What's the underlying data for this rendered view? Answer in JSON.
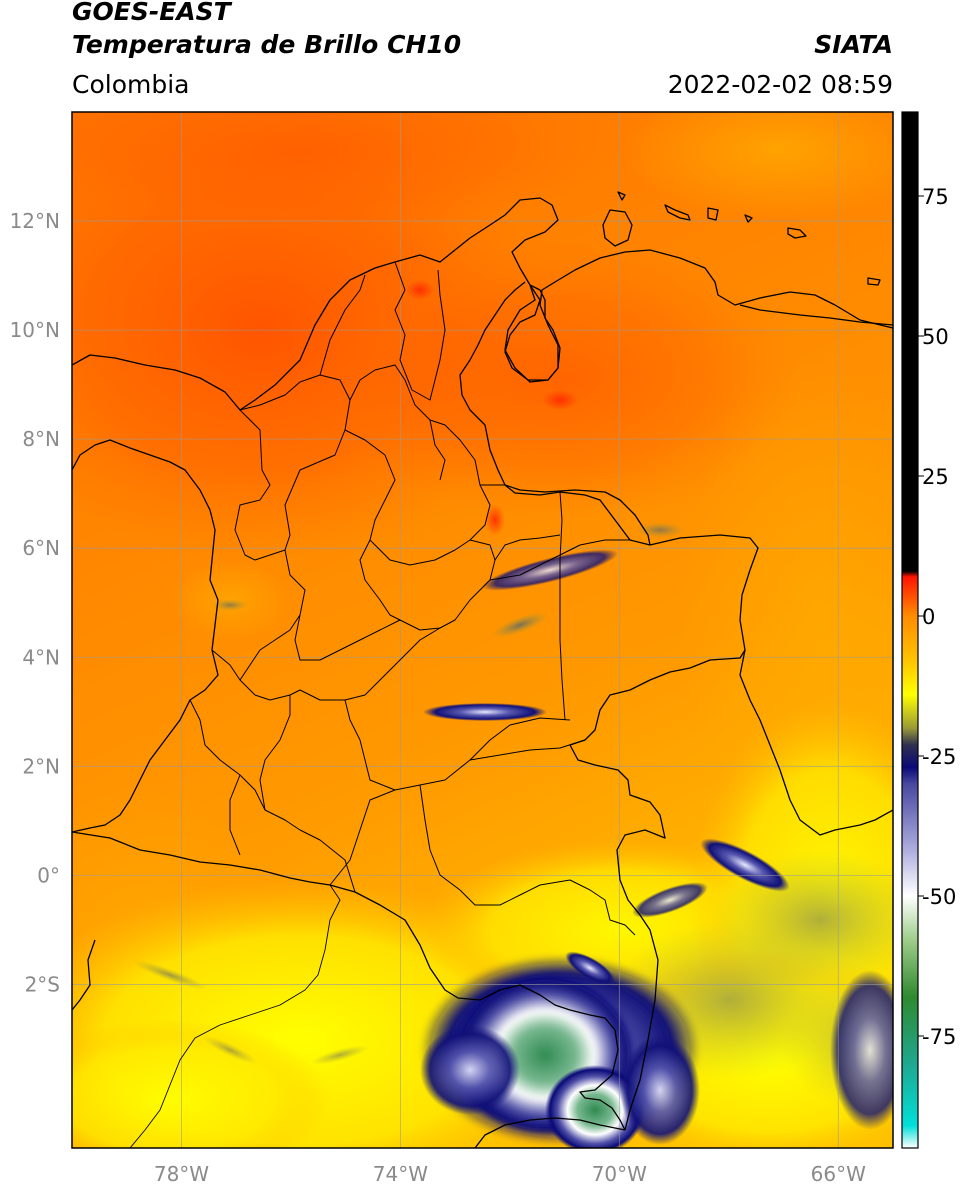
{
  "header": {
    "satellite": "GOES-EAST",
    "product": "Temperatura de Brillo CH10",
    "brand": "SIATA",
    "region": "Colombia",
    "datetime": "2022-02-02 08:59"
  },
  "map": {
    "lon_range": [
      -80,
      -65
    ],
    "lat_range": [
      -5,
      14
    ],
    "gridlines": true,
    "lat_ticks": [
      {
        "value": 12,
        "label": "12°N"
      },
      {
        "value": 10,
        "label": "10°N"
      },
      {
        "value": 8,
        "label": "8°N"
      },
      {
        "value": 6,
        "label": "6°N"
      },
      {
        "value": 4,
        "label": "4°N"
      },
      {
        "value": 2,
        "label": "2°N"
      },
      {
        "value": 0,
        "label": "0°"
      },
      {
        "value": -2,
        "label": "2°S"
      }
    ],
    "lon_ticks": [
      {
        "value": -78,
        "label": "78°W"
      },
      {
        "value": -74,
        "label": "74°W"
      },
      {
        "value": -70,
        "label": "70°W"
      },
      {
        "value": -66,
        "label": "66°W"
      }
    ]
  },
  "colorbar": {
    "range": [
      -95,
      90
    ],
    "ticks": [
      {
        "value": 75,
        "label": "75"
      },
      {
        "value": 50,
        "label": "50"
      },
      {
        "value": 25,
        "label": "25"
      },
      {
        "value": 0,
        "label": "0"
      },
      {
        "value": -25,
        "label": "-25"
      },
      {
        "value": -50,
        "label": "-50"
      },
      {
        "value": -75,
        "label": "-75"
      }
    ],
    "stops": [
      {
        "value": -95,
        "color": "#ffffff"
      },
      {
        "value": -91,
        "color": "#00e0d8"
      },
      {
        "value": -80,
        "color": "#1fa890"
      },
      {
        "value": -68,
        "color": "#2f8a30"
      },
      {
        "value": -58,
        "color": "#9ccc88"
      },
      {
        "value": -50,
        "color": "#ffffff"
      },
      {
        "value": -42,
        "color": "#b0b0e0"
      },
      {
        "value": -30,
        "color": "#4848a0"
      },
      {
        "value": -27,
        "color": "#0a0a78"
      },
      {
        "value": -23,
        "color": "#303050"
      },
      {
        "value": -20,
        "color": "#9a9a38"
      },
      {
        "value": -14,
        "color": "#ffff00"
      },
      {
        "value": -8,
        "color": "#ffc400"
      },
      {
        "value": 0,
        "color": "#ff8c00"
      },
      {
        "value": 7,
        "color": "#ff1400"
      },
      {
        "value": 8,
        "color": "#000000"
      },
      {
        "value": 90,
        "color": "#000000"
      }
    ]
  }
}
